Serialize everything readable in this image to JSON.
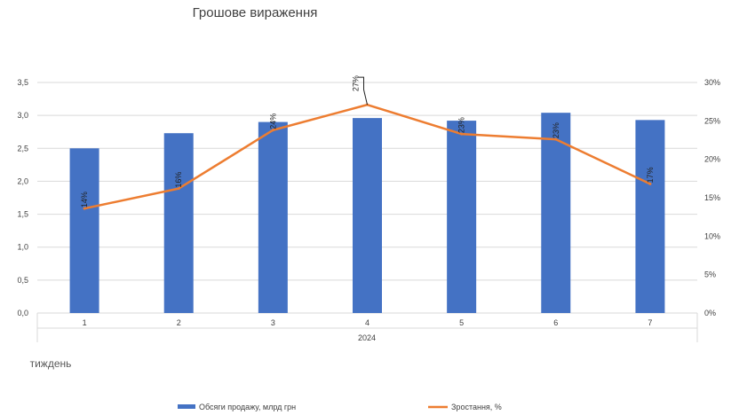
{
  "chart_data": {
    "type": "bar",
    "title": "Грошове вираження",
    "categories": [
      "1",
      "2",
      "3",
      "4",
      "5",
      "6",
      "7"
    ],
    "group_label": "2024",
    "xlabel": "тиждень",
    "series": [
      {
        "name": "Обсяги продажу, млрд грн",
        "type": "bar",
        "axis": "left",
        "color": "#4472C4",
        "values": [
          2.5,
          2.73,
          2.9,
          2.96,
          2.92,
          3.04,
          2.93
        ]
      },
      {
        "name": "Зростання, %",
        "type": "line",
        "axis": "right",
        "color": "#ED7D31",
        "values": [
          13.6,
          16.2,
          23.8,
          27.1,
          23.3,
          22.6,
          16.8
        ],
        "data_labels": [
          "14%",
          "16%",
          "24%",
          "27%",
          "23%",
          "23%",
          "17%"
        ]
      }
    ],
    "y_left": {
      "ylim": [
        0,
        3.5
      ],
      "ticks": [
        "0,0",
        "0,5",
        "1,0",
        "1,5",
        "2,0",
        "2,5",
        "3,0",
        "3,5"
      ]
    },
    "y_right": {
      "ylim": [
        0,
        30
      ],
      "ticks": [
        "0%",
        "5%",
        "10%",
        "15%",
        "20%",
        "25%",
        "30%"
      ]
    },
    "grid": true,
    "legend_position": "bottom"
  }
}
